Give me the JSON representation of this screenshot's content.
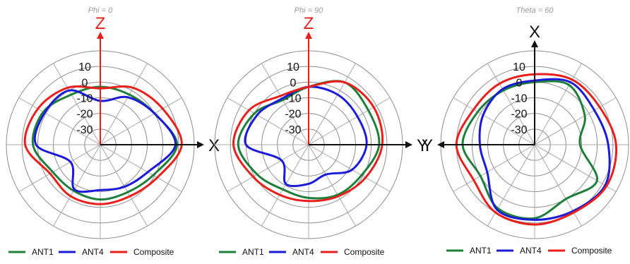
{
  "chart_data": [
    {
      "type": "polar",
      "title": "Phi = 0",
      "r_ticks": [
        "10",
        "0",
        "-10",
        "-20",
        "-30"
      ],
      "r_tick_values": [
        10,
        0,
        -10,
        -20,
        -30
      ],
      "r_range": [
        -40,
        20
      ],
      "angular_grid_step_deg": 30,
      "axes": [
        {
          "label": "Z",
          "direction": "up",
          "color": "#e8201c"
        },
        {
          "label": "X",
          "direction": "right",
          "color": "#111111"
        }
      ],
      "legend": [
        "ANT1",
        "ANT4",
        "Composite"
      ],
      "legend_position": "bottom",
      "angle_convention": "degrees counter-clockwise from positive x axis (right)",
      "series": [
        {
          "name": "ANT1",
          "color": "#1e7f3a",
          "angle_deg": [
            0,
            30,
            60,
            90,
            120,
            150,
            180,
            210,
            240,
            270,
            300,
            330
          ],
          "values": [
            9,
            0,
            -3,
            -3,
            -3,
            2,
            3,
            -5,
            -6,
            -5,
            -5,
            -1
          ]
        },
        {
          "name": "ANT4",
          "color": "#1a1ad8",
          "angle_deg": [
            0,
            30,
            60,
            90,
            120,
            150,
            180,
            210,
            240,
            270,
            300,
            330
          ],
          "values": [
            8,
            0,
            -5,
            -12,
            0,
            1,
            1,
            -18,
            -7,
            -11,
            -9,
            -5
          ]
        },
        {
          "name": "Composite",
          "color": "#e8201c",
          "angle_deg": [
            0,
            30,
            60,
            90,
            120,
            150,
            180,
            210,
            240,
            270,
            300,
            330
          ],
          "values": [
            12,
            6,
            2,
            -4,
            2,
            6,
            8,
            -3,
            -2,
            -2,
            -2,
            2
          ]
        }
      ]
    },
    {
      "type": "polar",
      "title": "Phi = 90",
      "r_ticks": [
        "10",
        "0",
        "-10",
        "-20",
        "-30"
      ],
      "r_tick_values": [
        10,
        0,
        -10,
        -20,
        -30
      ],
      "r_range": [
        -40,
        20
      ],
      "angular_grid_step_deg": 30,
      "axes": [
        {
          "label": "Z",
          "direction": "up",
          "color": "#e8201c"
        },
        {
          "label": "Y",
          "direction": "right",
          "color": "#111111"
        }
      ],
      "legend": [
        "ANT1",
        "ANT4",
        "Composite"
      ],
      "legend_position": "bottom",
      "angle_convention": "degrees counter-clockwise from positive x axis (right)",
      "series": [
        {
          "name": "ANT1",
          "color": "#1e7f3a",
          "angle_deg": [
            0,
            30,
            60,
            90,
            120,
            150,
            180,
            210,
            240,
            270,
            300,
            330
          ],
          "values": [
            5,
            4,
            6,
            -3,
            -7,
            0,
            5,
            -2,
            -7,
            -6,
            -3,
            -1
          ]
        },
        {
          "name": "ANT4",
          "color": "#1a1ad8",
          "angle_deg": [
            0,
            30,
            60,
            90,
            120,
            150,
            180,
            210,
            240,
            270,
            300,
            330
          ],
          "values": [
            -3,
            -4,
            -3,
            -3,
            -6,
            -2,
            0,
            -20,
            -11,
            -15,
            -18,
            -8
          ]
        },
        {
          "name": "Composite",
          "color": "#e8201c",
          "angle_deg": [
            0,
            30,
            60,
            90,
            120,
            150,
            180,
            210,
            240,
            270,
            300,
            330
          ],
          "values": [
            7,
            8,
            6,
            -3,
            -4,
            4,
            8,
            1,
            -3,
            -4,
            -2,
            2
          ]
        }
      ]
    },
    {
      "type": "polar",
      "title": "Theta = 60",
      "r_ticks": [
        "10",
        "0",
        "-10",
        "-20",
        "-30"
      ],
      "r_tick_values": [
        10,
        0,
        -10,
        -20,
        -30
      ],
      "r_range": [
        -40,
        20
      ],
      "angular_grid_step_deg": 30,
      "axes": [
        {
          "label": "X",
          "direction": "up",
          "color": "#111111"
        },
        {
          "label": "Y",
          "direction": "left",
          "color": "#111111"
        }
      ],
      "legend": [
        "ANT1",
        "ANT4",
        "Composite"
      ],
      "legend_position": "bottom",
      "angle_convention": "degrees counter-clockwise from positive x axis (right)",
      "series": [
        {
          "name": "ANT1",
          "color": "#1e7f3a",
          "angle_deg": [
            0,
            30,
            60,
            90,
            120,
            150,
            180,
            210,
            240,
            270,
            300,
            330
          ],
          "values": [
            -11,
            -3,
            4,
            0,
            0,
            2,
            6,
            0,
            7,
            7,
            0,
            6
          ]
        },
        {
          "name": "ANT4",
          "color": "#1a1ad8",
          "angle_deg": [
            0,
            30,
            60,
            90,
            120,
            150,
            180,
            210,
            240,
            270,
            300,
            330
          ],
          "values": [
            7,
            4,
            6,
            1,
            1,
            -2,
            -5,
            -5,
            8,
            8,
            9,
            12
          ]
        },
        {
          "name": "Composite",
          "color": "#e8201c",
          "angle_deg": [
            0,
            30,
            60,
            90,
            120,
            150,
            180,
            210,
            240,
            270,
            300,
            330
          ],
          "values": [
            12,
            8,
            8,
            5,
            5,
            5,
            10,
            5,
            10,
            11,
            10,
            13
          ]
        }
      ]
    }
  ]
}
